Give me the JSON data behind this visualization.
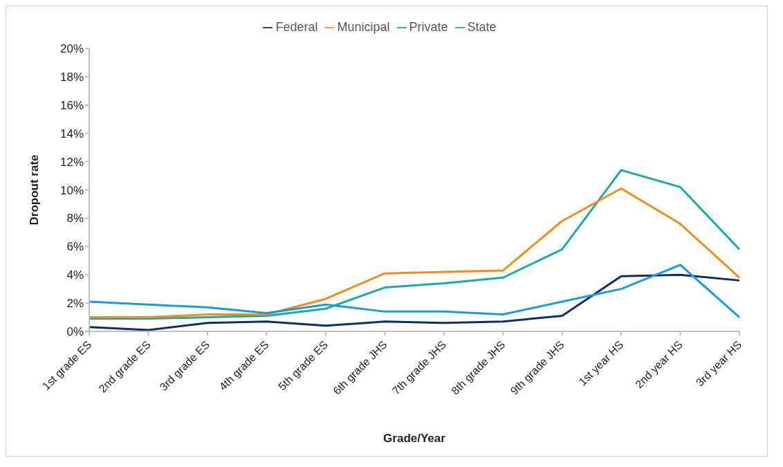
{
  "chart_data": {
    "type": "line",
    "xlabel": "Grade/Year",
    "ylabel": "Dropout rate",
    "categories": [
      "1st grade ES",
      "2nd grade ES",
      "3rd grade ES",
      "4th grade ES",
      "5th grade ES",
      "6th grade JHS",
      "7th grade JHS",
      "8th grade JHS",
      "9th grade JHS",
      "1st year HS",
      "2nd year HS",
      "3rd year HS"
    ],
    "series": [
      {
        "name": "State",
        "color": "#1aaaa8",
        "values": [
          0.9,
          0.9,
          1.0,
          1.1,
          1.6,
          3.1,
          3.4,
          3.8,
          5.8,
          11.4,
          10.2,
          5.8
        ]
      },
      {
        "name": "Municipal",
        "color": "#f58a1f",
        "values": [
          1.0,
          1.0,
          1.2,
          1.2,
          2.3,
          4.1,
          4.2,
          4.3,
          7.8,
          10.1,
          7.6,
          3.8
        ]
      },
      {
        "name": "Federal",
        "color": "#0b2f6b",
        "values": [
          0.3,
          0.1,
          0.6,
          0.7,
          0.4,
          0.7,
          0.6,
          0.7,
          1.1,
          3.9,
          4.0,
          3.6
        ]
      },
      {
        "name": "Private",
        "color": "#1a9ae0",
        "values": [
          2.1,
          1.9,
          1.7,
          1.3,
          1.9,
          1.4,
          1.4,
          1.2,
          2.1,
          3.0,
          4.7,
          1.0
        ]
      }
    ],
    "ylim": [
      0,
      20
    ],
    "yticks": [
      {
        "value": 0,
        "label": "0%"
      },
      {
        "value": 2,
        "label": "2%"
      },
      {
        "value": 4,
        "label": "4%"
      },
      {
        "value": 6,
        "label": "6%"
      },
      {
        "value": 8,
        "label": "8%"
      },
      {
        "value": 10,
        "label": "10%"
      },
      {
        "value": 12,
        "label": "12%"
      },
      {
        "value": 14,
        "label": "14%"
      },
      {
        "value": 16,
        "label": "16%"
      },
      {
        "value": 18,
        "label": "18%"
      },
      {
        "value": 20,
        "label": "20%"
      }
    ],
    "grid": false,
    "legend": "top",
    "marker": "none",
    "line_style": "solid"
  }
}
